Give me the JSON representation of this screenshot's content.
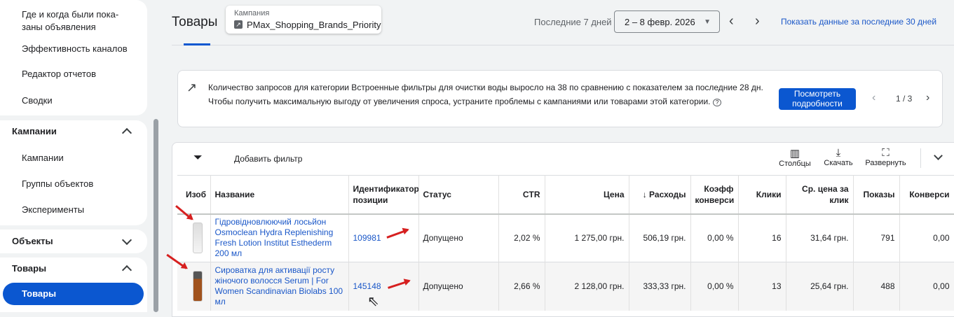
{
  "sidebar": {
    "group1": [
      "Где и когда были пока-\nзаны объявления",
      "Эффективность каналов",
      "Редактор отчетов",
      "Сводки"
    ],
    "campaigns_header": "Кампании",
    "campaigns_items": [
      "Кампании",
      "Группы объектов",
      "Эксперименты"
    ],
    "objects_header": "Объекты",
    "products_header": "Товары",
    "products_selected": "Товары"
  },
  "header": {
    "title": "Товары",
    "campaign_label": "Кампания",
    "campaign_name": "PMax_Shopping_Brands_Priority",
    "range_label": "Последние 7 дней",
    "date_range": "2 – 8 февр. 2026",
    "show_30": "Показать данные за последние 30 дней"
  },
  "banner": {
    "text": "Количество запросов для категории Встроенные фильтры для очистки воды выросло на 38 по сравнению с показателем за последние 28 дн. Чтобы получить максимальную выгоду от увеличения спроса, устраните проблемы с кампаниями или товарами этой категории.",
    "button": "Посмотреть подробности",
    "pager": "1 / 3"
  },
  "toolbar": {
    "add_filter": "Добавить фильтр",
    "columns": "Столбцы",
    "download": "Скачать",
    "expand": "Развернуть"
  },
  "table": {
    "headers": [
      "Изоб",
      "Название",
      "Идентификатор позиции",
      "Статус",
      "CTR",
      "Цена",
      "↓ Расходы",
      "Коэфф конверси",
      "Клики",
      "Ср. цена за клик",
      "Показы",
      "Конверси"
    ],
    "rows": [
      {
        "name": "Гідровідновлюючий лосьйон Osmoclean Hydra Replenishing Fresh Lotion Institut Esthederm 200 мл",
        "id": "109981",
        "status": "Допущено",
        "ctr": "2,02 %",
        "price": "1 275,00 грн.",
        "cost": "506,19 грн.",
        "conv_rate": "0,00 %",
        "clicks": "16",
        "cpc": "31,64 грн.",
        "impr": "791",
        "conv": "0,00"
      },
      {
        "name": "Сироватка для активації росту жіночого волосся Serum | For Women Scandinavian Biolabs 100 мл",
        "id": "145148",
        "status": "Допущено",
        "ctr": "2,66 %",
        "price": "2 128,00 грн.",
        "cost": "333,33 грн.",
        "conv_rate": "0,00 %",
        "clicks": "13",
        "cpc": "25,64 грн.",
        "impr": "488",
        "conv": "0,00"
      }
    ]
  },
  "colors": {
    "accent": "#0b57d0",
    "link": "#1a57c8",
    "annotation": "#d62020"
  }
}
